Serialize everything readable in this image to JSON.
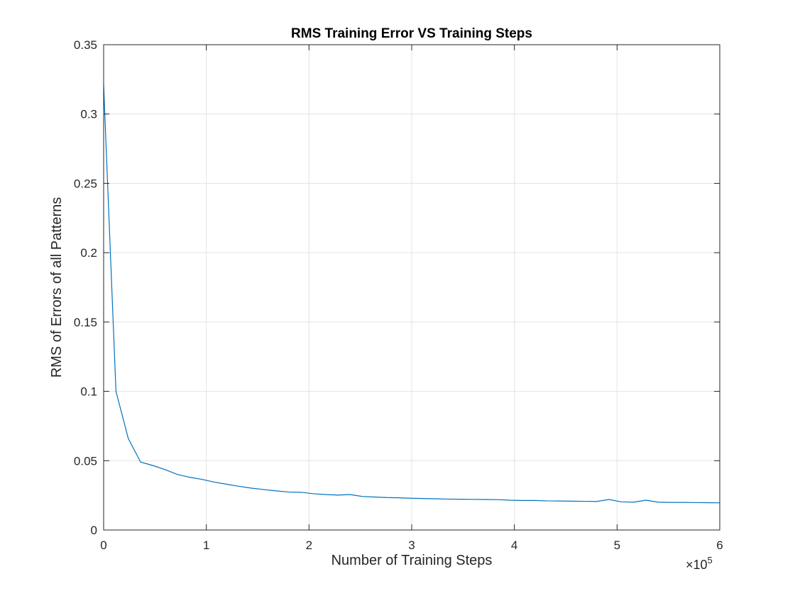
{
  "chart_data": {
    "type": "line",
    "title": "RMS Training Error VS Training Steps",
    "xlabel": "Number of Training Steps",
    "ylabel": "RMS of Errors of all Patterns",
    "xlim": [
      0,
      6
    ],
    "ylim": [
      0,
      0.35
    ],
    "x_scale_multiplier": {
      "prefix": "×10",
      "exponent": "5"
    },
    "grid": true,
    "x_ticks": [
      0,
      1,
      2,
      3,
      4,
      5,
      6
    ],
    "x_tick_labels": [
      "0",
      "1",
      "2",
      "3",
      "4",
      "5",
      "6"
    ],
    "y_ticks": [
      0,
      0.05,
      0.1,
      0.15,
      0.2,
      0.25,
      0.3,
      0.35
    ],
    "y_tick_labels": [
      "0",
      "0.05",
      "0.1",
      "0.15",
      "0.2",
      "0.25",
      "0.3",
      "0.35"
    ],
    "series": [
      {
        "color": "#0072bd",
        "x": [
          0,
          0.12,
          0.24,
          0.36,
          0.48,
          0.6,
          0.72,
          0.84,
          0.96,
          1.08,
          1.2,
          1.32,
          1.44,
          1.56,
          1.68,
          1.8,
          1.92,
          2.04,
          2.16,
          2.28,
          2.4,
          2.52,
          2.64,
          2.76,
          2.88,
          3.0,
          3.12,
          3.24,
          3.36,
          3.48,
          3.6,
          3.72,
          3.84,
          3.96,
          4.08,
          4.2,
          4.32,
          4.44,
          4.56,
          4.68,
          4.8,
          4.92,
          5.04,
          5.16,
          5.28,
          5.4,
          5.52,
          5.64,
          5.76,
          5.88,
          6.0
        ],
        "y": [
          0.321,
          0.1,
          0.066,
          0.049,
          0.0465,
          0.0435,
          0.04,
          0.038,
          0.0365,
          0.0345,
          0.033,
          0.0315,
          0.0302,
          0.0292,
          0.0282,
          0.0274,
          0.0272,
          0.0262,
          0.0256,
          0.0252,
          0.0256,
          0.0242,
          0.0238,
          0.0234,
          0.0232,
          0.0229,
          0.0227,
          0.0225,
          0.0223,
          0.0222,
          0.0221,
          0.022,
          0.0219,
          0.0215,
          0.0213,
          0.0213,
          0.021,
          0.0209,
          0.0208,
          0.0207,
          0.0206,
          0.022,
          0.0203,
          0.0201,
          0.0215,
          0.0201,
          0.0199,
          0.0199,
          0.0198,
          0.0197,
          0.0196
        ]
      }
    ]
  }
}
